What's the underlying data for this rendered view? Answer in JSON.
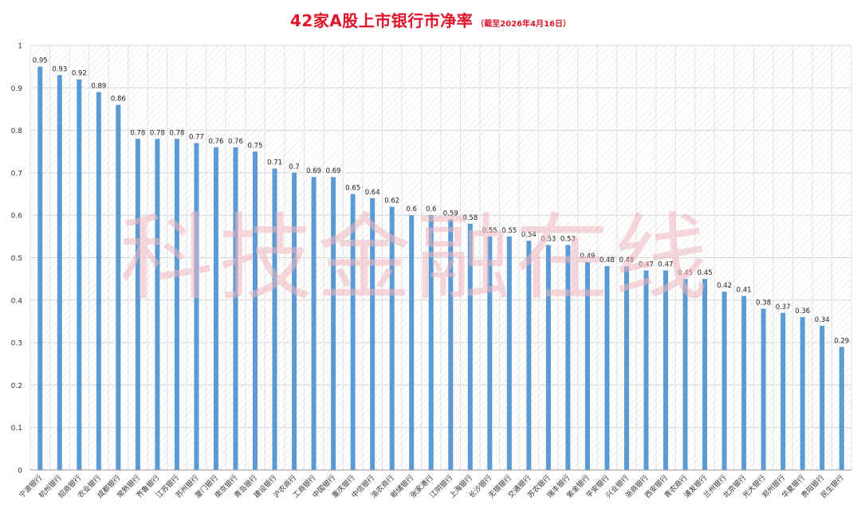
{
  "chart_data": {
    "type": "bar",
    "title": "42家A股上市银行市净率",
    "subtitle": "（截至2026年4月16日）",
    "watermark": "科技金融在线",
    "xlabel": "",
    "ylabel": "",
    "ylim": [
      0,
      1
    ],
    "yticks": [
      "0",
      "0.1",
      "0.2",
      "0.3",
      "0.4",
      "0.5",
      "0.6",
      "0.7",
      "0.8",
      "0.9",
      "1"
    ],
    "grid": true,
    "legend": "none",
    "bar_color": "#5b9bd5",
    "title_color": "#e0142a",
    "categories": [
      "宁波银行",
      "杭州银行",
      "招商银行",
      "农业银行",
      "成都银行",
      "常熟银行",
      "齐鲁银行",
      "江苏银行",
      "苏州银行",
      "厦门银行",
      "南京银行",
      "青岛银行",
      "建设银行",
      "沪农商行",
      "工商银行",
      "中国银行",
      "重庆银行",
      "中信银行",
      "渝农商行",
      "邮储银行",
      "张家港行",
      "江阴银行",
      "上海银行",
      "长沙银行",
      "无锡银行",
      "交通银行",
      "苏农银行",
      "瑞丰银行",
      "紫金银行",
      "平安银行",
      "兴业银行",
      "浙商银行",
      "西安银行",
      "青农商行",
      "浦发银行",
      "兰州银行",
      "北京银行",
      "光大银行",
      "郑州银行",
      "华夏银行",
      "贵阳银行",
      "民生银行"
    ],
    "values": [
      0.95,
      0.93,
      0.92,
      0.89,
      0.86,
      0.78,
      0.78,
      0.78,
      0.77,
      0.76,
      0.76,
      0.75,
      0.71,
      0.7,
      0.69,
      0.69,
      0.65,
      0.64,
      0.62,
      0.6,
      0.6,
      0.59,
      0.58,
      0.55,
      0.55,
      0.54,
      0.53,
      0.53,
      0.49,
      0.48,
      0.48,
      0.47,
      0.47,
      0.45,
      0.45,
      0.42,
      0.41,
      0.38,
      0.37,
      0.36,
      0.34,
      0.29
    ],
    "value_labels": [
      "0.95",
      "0.93",
      "0.92",
      "0.89",
      "0.86",
      "0.78",
      "0.78",
      "0.78",
      "0.77",
      "0.76",
      "0.76",
      "0.75",
      "0.71",
      "0.7",
      "0.69",
      "0.69",
      "0.65",
      "0.64",
      "0.62",
      "0.6",
      "0.6",
      "0.59",
      "0.58",
      "0.55",
      "0.55",
      "0.54",
      "0.53",
      "0.53",
      "0.49",
      "0.48",
      "0.48",
      "0.47",
      "0.47",
      "0.45",
      "0.45",
      "0.42",
      "0.41",
      "0.38",
      "0.37",
      "0.36",
      "0.34",
      "0.29"
    ]
  }
}
